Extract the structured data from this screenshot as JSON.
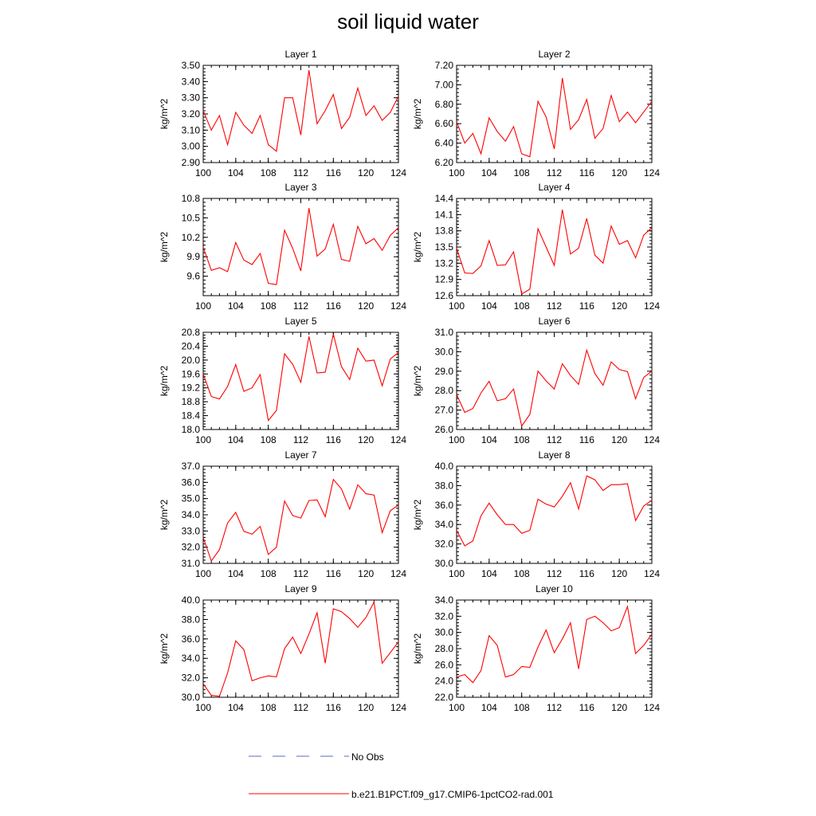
{
  "figure": {
    "title": "soil liquid water",
    "ylabel": "kg/m^2",
    "legend": [
      {
        "label": "No Obs",
        "color": "#5a6acb",
        "style": "dashed"
      },
      {
        "label": "b.e21.B1PCT.f09_g17.CMIP6-1pctCO2-rad.001",
        "color": "#ff0000",
        "style": "solid"
      }
    ]
  },
  "chart_data": [
    {
      "type": "line",
      "title": "Layer 1",
      "ylabel": "kg/m^2",
      "xlim": [
        100,
        124
      ],
      "xticks": [
        "100",
        "104",
        "108",
        "112",
        "116",
        "120",
        "124"
      ],
      "ylim": [
        2.9,
        3.5
      ],
      "yticks": [
        "2.90",
        "3.00",
        "3.10",
        "3.20",
        "3.30",
        "3.40",
        "3.50"
      ],
      "series": [
        {
          "color": "#ff0000",
          "x": [
            100,
            101,
            102,
            103,
            104,
            105,
            106,
            107,
            108,
            109,
            110,
            111,
            112,
            113,
            114,
            115,
            116,
            117,
            118,
            119,
            120,
            121,
            122,
            123,
            124
          ],
          "values": [
            3.22,
            3.1,
            3.19,
            3.01,
            3.21,
            3.13,
            3.08,
            3.19,
            3.01,
            2.97,
            3.3,
            3.3,
            3.07,
            3.47,
            3.14,
            3.22,
            3.32,
            3.11,
            3.18,
            3.36,
            3.19,
            3.25,
            3.16,
            3.21,
            3.31
          ]
        }
      ]
    },
    {
      "type": "line",
      "title": "Layer 2",
      "ylabel": "kg/m^2",
      "xlim": [
        100,
        124
      ],
      "xticks": [
        "100",
        "104",
        "108",
        "112",
        "116",
        "120",
        "124"
      ],
      "ylim": [
        6.2,
        7.2
      ],
      "yticks": [
        "6.20",
        "6.40",
        "6.60",
        "6.80",
        "7.00",
        "7.20"
      ],
      "series": [
        {
          "color": "#ff0000",
          "x": [
            100,
            101,
            102,
            103,
            104,
            105,
            106,
            107,
            108,
            109,
            110,
            111,
            112,
            113,
            114,
            115,
            116,
            117,
            118,
            119,
            120,
            121,
            122,
            123,
            124
          ],
          "values": [
            6.62,
            6.4,
            6.5,
            6.29,
            6.66,
            6.52,
            6.42,
            6.57,
            6.29,
            6.26,
            6.83,
            6.67,
            6.34,
            7.07,
            6.54,
            6.64,
            6.85,
            6.45,
            6.55,
            6.89,
            6.62,
            6.72,
            6.61,
            6.72,
            6.83
          ]
        }
      ]
    },
    {
      "type": "line",
      "title": "Layer 3",
      "ylabel": "kg/m^2",
      "xlim": [
        100,
        124
      ],
      "xticks": [
        "100",
        "104",
        "108",
        "112",
        "116",
        "120",
        "124"
      ],
      "ylim": [
        9.3,
        10.8
      ],
      "yticks": [
        "9.6",
        "9.9",
        "10.2",
        "10.5",
        "10.8"
      ],
      "series": [
        {
          "color": "#ff0000",
          "x": [
            100,
            101,
            102,
            103,
            104,
            105,
            106,
            107,
            108,
            109,
            110,
            111,
            112,
            113,
            114,
            115,
            116,
            117,
            118,
            119,
            120,
            121,
            122,
            123,
            124
          ],
          "values": [
            10.05,
            9.69,
            9.73,
            9.67,
            10.12,
            9.85,
            9.78,
            9.95,
            9.49,
            9.47,
            10.31,
            10.03,
            9.68,
            10.65,
            9.91,
            10.02,
            10.4,
            9.86,
            9.83,
            10.37,
            10.1,
            10.18,
            10.0,
            10.23,
            10.35
          ]
        }
      ]
    },
    {
      "type": "line",
      "title": "Layer 4",
      "ylabel": "kg/m^2",
      "xlim": [
        100,
        124
      ],
      "xticks": [
        "100",
        "104",
        "108",
        "112",
        "116",
        "120",
        "124"
      ],
      "ylim": [
        12.6,
        14.4
      ],
      "yticks": [
        "12.6",
        "12.9",
        "13.2",
        "13.5",
        "13.8",
        "14.1",
        "14.4"
      ],
      "series": [
        {
          "color": "#ff0000",
          "x": [
            100,
            101,
            102,
            103,
            104,
            105,
            106,
            107,
            108,
            109,
            110,
            111,
            112,
            113,
            114,
            115,
            116,
            117,
            118,
            119,
            120,
            121,
            122,
            123,
            124
          ],
          "values": [
            13.48,
            13.02,
            13.01,
            13.15,
            13.62,
            13.16,
            13.17,
            13.41,
            12.63,
            12.72,
            13.84,
            13.5,
            13.16,
            14.19,
            13.37,
            13.48,
            14.03,
            13.35,
            13.2,
            13.89,
            13.55,
            13.62,
            13.3,
            13.72,
            13.86
          ]
        }
      ]
    },
    {
      "type": "line",
      "title": "Layer 5",
      "ylabel": "kg/m^2",
      "xlim": [
        100,
        124
      ],
      "xticks": [
        "100",
        "104",
        "108",
        "112",
        "116",
        "120",
        "124"
      ],
      "ylim": [
        18.0,
        20.8
      ],
      "yticks": [
        "18.0",
        "18.4",
        "18.8",
        "19.2",
        "19.6",
        "20.0",
        "20.4",
        "20.8"
      ],
      "series": [
        {
          "color": "#ff0000",
          "x": [
            100,
            101,
            102,
            103,
            104,
            105,
            106,
            107,
            108,
            109,
            110,
            111,
            112,
            113,
            114,
            115,
            116,
            117,
            118,
            119,
            120,
            121,
            122,
            123,
            124
          ],
          "values": [
            19.6,
            18.95,
            18.88,
            19.24,
            19.87,
            19.1,
            19.2,
            19.58,
            18.26,
            18.55,
            20.18,
            19.88,
            19.36,
            20.68,
            19.63,
            19.65,
            20.75,
            19.81,
            19.44,
            20.34,
            19.97,
            20.0,
            19.26,
            20.03,
            20.22
          ]
        }
      ]
    },
    {
      "type": "line",
      "title": "Layer 6",
      "ylabel": "kg/m^2",
      "xlim": [
        100,
        124
      ],
      "xticks": [
        "100",
        "104",
        "108",
        "112",
        "116",
        "120",
        "124"
      ],
      "ylim": [
        26.0,
        31.0
      ],
      "yticks": [
        "26.0",
        "27.0",
        "28.0",
        "29.0",
        "30.0",
        "31.0"
      ],
      "series": [
        {
          "color": "#ff0000",
          "x": [
            100,
            101,
            102,
            103,
            104,
            105,
            106,
            107,
            108,
            109,
            110,
            111,
            112,
            113,
            114,
            115,
            116,
            117,
            118,
            119,
            120,
            121,
            122,
            123,
            124
          ],
          "values": [
            27.8,
            26.88,
            27.08,
            27.88,
            28.48,
            27.48,
            27.58,
            28.08,
            26.18,
            26.78,
            29.0,
            28.5,
            28.08,
            29.38,
            28.78,
            28.32,
            30.08,
            28.88,
            28.28,
            29.48,
            29.08,
            28.98,
            27.58,
            28.68,
            29.0
          ]
        }
      ]
    },
    {
      "type": "line",
      "title": "Layer 7",
      "ylabel": "kg/m^2",
      "xlim": [
        100,
        124
      ],
      "xticks": [
        "100",
        "104",
        "108",
        "112",
        "116",
        "120",
        "124"
      ],
      "ylim": [
        31.0,
        37.0
      ],
      "yticks": [
        "31.0",
        "32.0",
        "33.0",
        "34.0",
        "35.0",
        "36.0",
        "37.0"
      ],
      "series": [
        {
          "color": "#ff0000",
          "x": [
            100,
            101,
            102,
            103,
            104,
            105,
            106,
            107,
            108,
            109,
            110,
            111,
            112,
            113,
            114,
            115,
            116,
            117,
            118,
            119,
            120,
            121,
            122,
            123,
            124
          ],
          "values": [
            32.6,
            31.15,
            31.85,
            33.5,
            34.15,
            32.98,
            32.8,
            33.28,
            31.55,
            32.0,
            34.85,
            33.95,
            33.8,
            34.88,
            34.92,
            33.88,
            36.18,
            35.6,
            34.35,
            35.85,
            35.3,
            35.22,
            32.9,
            34.25,
            34.6
          ]
        }
      ]
    },
    {
      "type": "line",
      "title": "Layer 8",
      "ylabel": "kg/m^2",
      "xlim": [
        100,
        124
      ],
      "xticks": [
        "100",
        "104",
        "108",
        "112",
        "116",
        "120",
        "124"
      ],
      "ylim": [
        30.0,
        40.0
      ],
      "yticks": [
        "30.0",
        "32.0",
        "34.0",
        "36.0",
        "38.0",
        "40.0"
      ],
      "series": [
        {
          "color": "#ff0000",
          "x": [
            100,
            101,
            102,
            103,
            104,
            105,
            106,
            107,
            108,
            109,
            110,
            111,
            112,
            113,
            114,
            115,
            116,
            117,
            118,
            119,
            120,
            121,
            122,
            123,
            124
          ],
          "values": [
            33.4,
            31.8,
            32.3,
            34.9,
            36.2,
            35.0,
            34.0,
            34.0,
            33.1,
            33.4,
            36.6,
            36.1,
            35.8,
            36.9,
            38.3,
            35.6,
            39.0,
            38.6,
            37.5,
            38.1,
            38.1,
            38.2,
            34.4,
            35.9,
            36.5
          ]
        }
      ]
    },
    {
      "type": "line",
      "title": "Layer 9",
      "ylabel": "kg/m^2",
      "xlim": [
        100,
        124
      ],
      "xticks": [
        "100",
        "104",
        "108",
        "112",
        "116",
        "120",
        "124"
      ],
      "ylim": [
        30.0,
        40.0
      ],
      "yticks": [
        "30.0",
        "32.0",
        "34.0",
        "36.0",
        "38.0",
        "40.0"
      ],
      "series": [
        {
          "color": "#ff0000",
          "x": [
            100,
            101,
            102,
            103,
            104,
            105,
            106,
            107,
            108,
            109,
            110,
            111,
            112,
            113,
            114,
            115,
            116,
            117,
            118,
            119,
            120,
            121,
            122,
            123,
            124
          ],
          "values": [
            31.4,
            30.2,
            30.1,
            32.5,
            35.8,
            34.9,
            31.7,
            32.0,
            32.2,
            32.1,
            35.0,
            36.2,
            34.5,
            36.5,
            38.7,
            33.5,
            39.1,
            38.8,
            38.1,
            37.2,
            38.2,
            39.8,
            33.5,
            34.6,
            35.7
          ]
        }
      ]
    },
    {
      "type": "line",
      "title": "Layer 10",
      "ylabel": "kg/m^2",
      "xlim": [
        100,
        124
      ],
      "xticks": [
        "100",
        "104",
        "108",
        "112",
        "116",
        "120",
        "124"
      ],
      "ylim": [
        22.0,
        34.0
      ],
      "yticks": [
        "22.0",
        "24.0",
        "26.0",
        "28.0",
        "30.0",
        "32.0",
        "34.0"
      ],
      "series": [
        {
          "color": "#ff0000",
          "x": [
            100,
            101,
            102,
            103,
            104,
            105,
            106,
            107,
            108,
            109,
            110,
            111,
            112,
            113,
            114,
            115,
            116,
            117,
            118,
            119,
            120,
            121,
            122,
            123,
            124
          ],
          "values": [
            24.5,
            24.8,
            23.8,
            25.3,
            29.6,
            28.4,
            24.5,
            24.8,
            25.8,
            25.7,
            28.2,
            30.3,
            27.5,
            29.2,
            31.2,
            25.5,
            31.6,
            32.0,
            31.2,
            30.2,
            30.6,
            33.2,
            27.4,
            28.4,
            29.8
          ]
        }
      ]
    }
  ]
}
